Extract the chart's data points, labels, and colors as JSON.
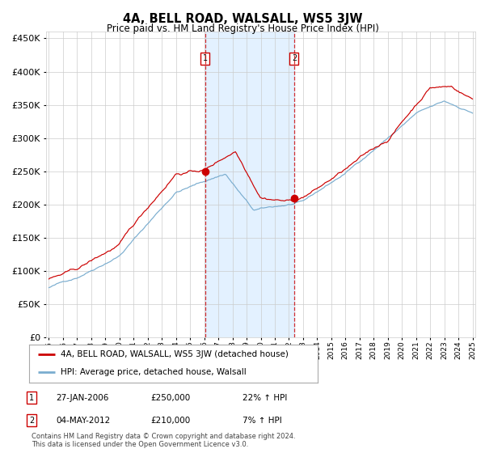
{
  "title": "4A, BELL ROAD, WALSALL, WS5 3JW",
  "subtitle": "Price paid vs. HM Land Registry's House Price Index (HPI)",
  "legend_line1": "4A, BELL ROAD, WALSALL, WS5 3JW (detached house)",
  "legend_line2": "HPI: Average price, detached house, Walsall",
  "transaction1_label": "1",
  "transaction1_date": "27-JAN-2006",
  "transaction1_price": "£250,000",
  "transaction1_hpi": "22% ↑ HPI",
  "transaction1_year": 2006.07,
  "transaction1_value": 250000,
  "transaction2_label": "2",
  "transaction2_date": "04-MAY-2012",
  "transaction2_price": "£210,000",
  "transaction2_hpi": "7% ↑ HPI",
  "transaction2_year": 2012.37,
  "transaction2_value": 210000,
  "footnote1": "Contains HM Land Registry data © Crown copyright and database right 2024.",
  "footnote2": "This data is licensed under the Open Government Licence v3.0.",
  "red_color": "#cc0000",
  "blue_color": "#7aadcf",
  "shade_color": "#ddeeff",
  "bg_color": "#ffffff",
  "grid_color": "#cccccc",
  "ylim": [
    0,
    460000
  ],
  "yticks": [
    0,
    50000,
    100000,
    150000,
    200000,
    250000,
    300000,
    350000,
    400000,
    450000
  ],
  "start_year": 1995,
  "end_year": 2025
}
